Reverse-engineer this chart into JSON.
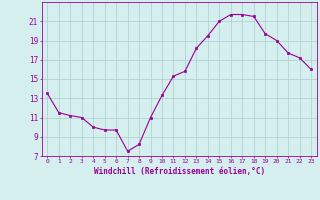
{
  "x": [
    0,
    1,
    2,
    3,
    4,
    5,
    6,
    7,
    8,
    9,
    10,
    11,
    12,
    13,
    14,
    15,
    16,
    17,
    18,
    19,
    20,
    21,
    22,
    23
  ],
  "y": [
    13.5,
    11.5,
    11.2,
    11.0,
    10.0,
    9.7,
    9.7,
    7.5,
    8.2,
    11.0,
    13.3,
    15.3,
    15.8,
    18.2,
    19.5,
    21.0,
    21.7,
    21.7,
    21.5,
    19.7,
    19.0,
    17.7,
    17.2,
    16.0
  ],
  "line_color": "#990099",
  "marker_color": "#990099",
  "bg_color": "#d5eeee",
  "grid_color": "#aacccc",
  "axis_label_color": "#990099",
  "tick_color": "#990099",
  "xlabel": "Windchill (Refroidissement éolien,°C)",
  "ylim": [
    7,
    23
  ],
  "xlim": [
    -0.5,
    23.5
  ],
  "yticks": [
    7,
    9,
    11,
    13,
    15,
    17,
    19,
    21
  ],
  "xtick_labels": [
    "0",
    "1",
    "2",
    "3",
    "4",
    "5",
    "6",
    "7",
    "8",
    "9",
    "10",
    "11",
    "12",
    "13",
    "14",
    "15",
    "16",
    "17",
    "18",
    "19",
    "20",
    "21",
    "22",
    "23"
  ]
}
